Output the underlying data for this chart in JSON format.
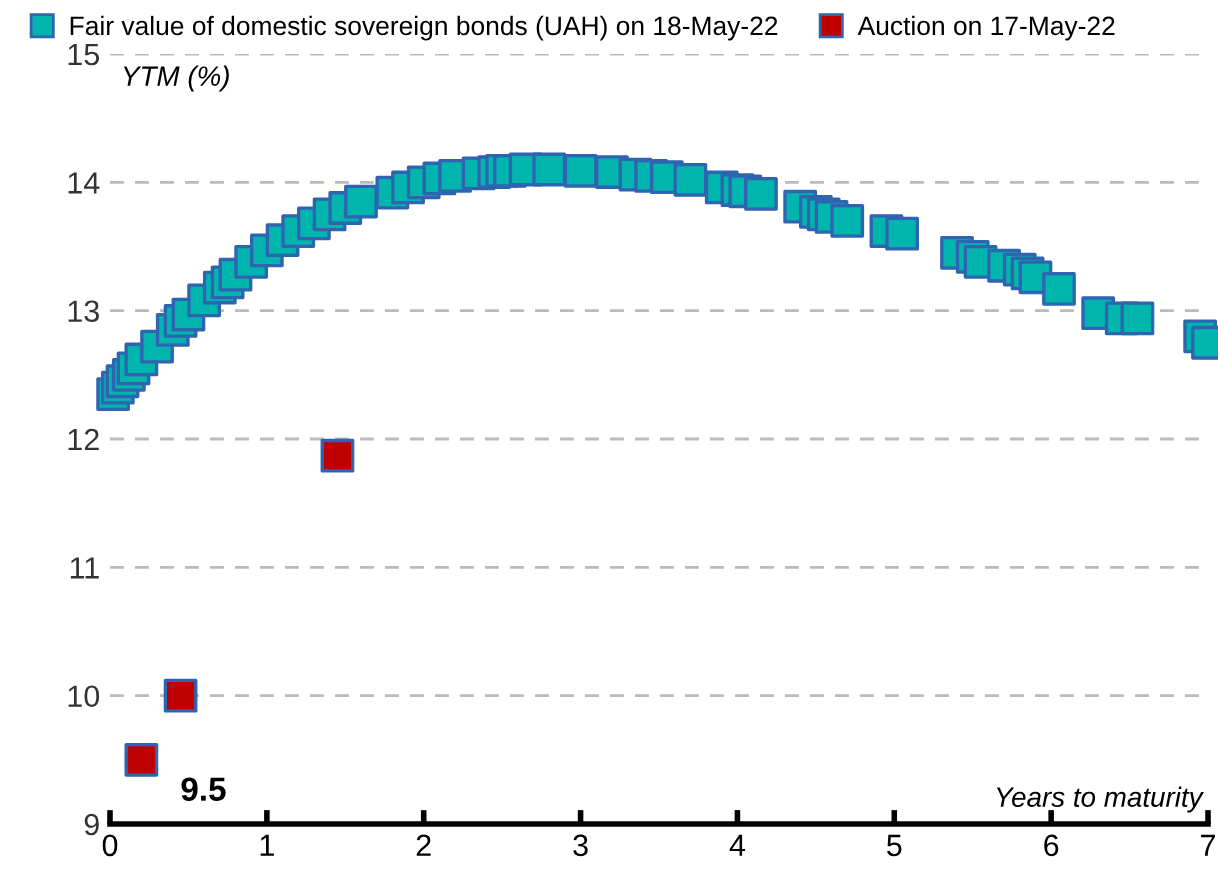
{
  "chart_data": {
    "type": "scatter",
    "ylabel": "YTM (%)",
    "xlabel": "Years to maturity",
    "xlim": [
      0,
      7
    ],
    "xticks": [
      0,
      1,
      2,
      3,
      4,
      5,
      6,
      7
    ],
    "ylim": [
      9,
      15
    ],
    "yticks": [
      9,
      10,
      11,
      12,
      13,
      14,
      15
    ],
    "grid": "y",
    "legend": "top",
    "marker": "square",
    "series": [
      {
        "name": "Fair value of domestic sovereign bonds (UAH) on 18-May-22",
        "color": "#00b5ad",
        "x": [
          0.02,
          0.05,
          0.08,
          0.12,
          0.15,
          0.2,
          0.3,
          0.4,
          0.45,
          0.5,
          0.6,
          0.7,
          0.75,
          0.8,
          0.9,
          1.0,
          1.1,
          1.2,
          1.3,
          1.4,
          1.5,
          1.6,
          1.8,
          1.9,
          2.0,
          2.1,
          2.2,
          2.35,
          2.45,
          2.5,
          2.55,
          2.65,
          2.8,
          3.0,
          3.2,
          3.35,
          3.45,
          3.55,
          3.7,
          3.9,
          4.0,
          4.05,
          4.15,
          4.4,
          4.5,
          4.55,
          4.6,
          4.7,
          4.95,
          5.05,
          5.4,
          5.5,
          5.55,
          5.7,
          5.8,
          5.85,
          5.9,
          6.05,
          6.3,
          6.45,
          6.55,
          6.95,
          7.0
        ],
        "values": [
          12.35,
          12.4,
          12.45,
          12.5,
          12.55,
          12.62,
          12.72,
          12.85,
          12.92,
          12.97,
          13.08,
          13.18,
          13.22,
          13.28,
          13.38,
          13.47,
          13.55,
          13.62,
          13.68,
          13.75,
          13.8,
          13.85,
          13.92,
          13.96,
          14.0,
          14.03,
          14.05,
          14.07,
          14.08,
          14.09,
          14.09,
          14.1,
          14.1,
          14.09,
          14.08,
          14.06,
          14.05,
          14.04,
          14.02,
          13.96,
          13.94,
          13.93,
          13.91,
          13.81,
          13.77,
          13.75,
          13.73,
          13.7,
          13.62,
          13.6,
          13.45,
          13.42,
          13.38,
          13.35,
          13.32,
          13.29,
          13.26,
          13.17,
          12.98,
          12.94,
          12.94,
          12.8,
          12.75
        ]
      },
      {
        "name": "Auction on 17-May-22",
        "color": "#c00000",
        "x": [
          0.2,
          0.45,
          1.45
        ],
        "values": [
          9.5,
          10.0,
          11.87
        ]
      }
    ],
    "annotations": [
      {
        "text": "9.5",
        "x": 0.2,
        "y": 9.5
      }
    ]
  }
}
